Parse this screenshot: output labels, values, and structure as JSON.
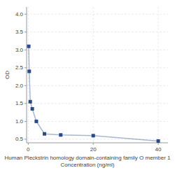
{
  "chart_data": {
    "type": "line",
    "xlabel": "Human Pleckstrin homology domain-containing family O member 1\nConcentration (ng/ml)",
    "ylabel": "OD",
    "x": [
      0.156,
      0.313,
      0.625,
      1.25,
      2.5,
      5,
      10,
      20,
      40
    ],
    "values": [
      3.1,
      2.4,
      1.55,
      1.35,
      1.0,
      0.65,
      0.62,
      0.6,
      0.45
    ],
    "color": "#2a4a8a",
    "marker": "square",
    "xlim": [
      -0.5,
      43
    ],
    "ylim": [
      0.4,
      4.2
    ],
    "xticks": [
      0,
      20,
      40
    ],
    "yticks": [
      0.5,
      {
        "value": 1.0,
        "label": "1.0"
      },
      1.5,
      {
        "value": 2.0,
        "label": "2.0"
      },
      2.5,
      {
        "value": 3.0,
        "label": "3.0"
      },
      3.5,
      {
        "value": 4.0,
        "label": "4.0"
      }
    ],
    "grid": true
  }
}
